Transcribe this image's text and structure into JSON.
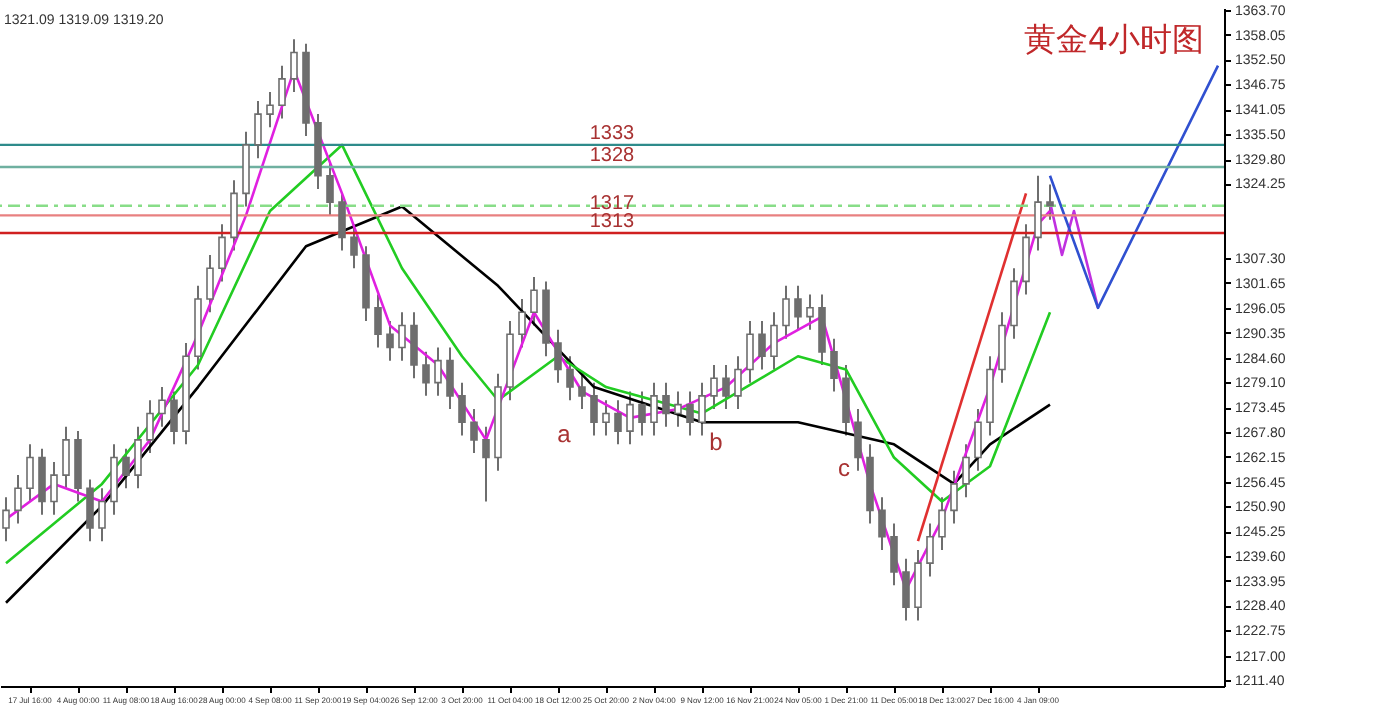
{
  "chart_data": {
    "type": "candlestick",
    "title": "黄金4小时图",
    "color": "#6e6e6e",
    "annotations": [
      "1321.09 1319.09 1319.20",
      "a",
      "b",
      "c"
    ],
    "categories": [
      null,
      null,
      "17 Jul 16:00",
      null,
      null,
      null,
      "4 Aug 00:00",
      null,
      null,
      null,
      "11 Aug 08:00",
      null,
      null,
      null,
      "18 Aug 16:00",
      null,
      null,
      null,
      "28 Aug 00:00",
      null,
      null,
      null,
      "4 Sep 08:00",
      null,
      null,
      null,
      "11 Sep 20:00",
      null,
      null,
      null,
      "19 Sep 04:00",
      null,
      null,
      null,
      "26 Sep 12:00",
      null,
      null,
      null,
      "3 Oct 20:00",
      null,
      null,
      null,
      "11 Oct 04:00",
      null,
      null,
      null,
      "18 Oct 12:00",
      null,
      null,
      null,
      "25 Oct 20:00",
      null,
      null,
      null,
      "2 Nov 04:00",
      null,
      null,
      null,
      "9 Nov 12:00",
      null,
      null,
      null,
      "16 Nov 21:00",
      null,
      null,
      null,
      "24 Nov 05:00",
      null,
      null,
      null,
      "1 Dec 21:00",
      null,
      null,
      null,
      "11 Dec 05:00",
      null,
      null,
      null,
      "18 Dec 13:00",
      null,
      null,
      null,
      "27 Dec 16:00",
      null,
      null,
      null,
      "4 Jan 09:00",
      null,
      null,
      null,
      null,
      null,
      null,
      null,
      null,
      null,
      null,
      null,
      null,
      null,
      null,
      null
    ],
    "ohlc": [
      [
        1246,
        1253,
        1243,
        1250
      ],
      [
        1250,
        1258,
        1247,
        1255
      ],
      [
        1255,
        1265,
        1252,
        1262
      ],
      [
        1262,
        1264,
        1249,
        1252
      ],
      [
        1252,
        1261,
        1249,
        1258
      ],
      [
        1258,
        1269,
        1255,
        1266
      ],
      [
        1266,
        1268,
        1252,
        1255
      ],
      [
        1255,
        1257,
        1243,
        1246
      ],
      [
        1246,
        1255,
        1243,
        1252
      ],
      [
        1252,
        1265,
        1249,
        1262
      ],
      [
        1262,
        1264,
        1255,
        1258
      ],
      [
        1258,
        1269,
        1255,
        1266
      ],
      [
        1266,
        1275,
        1263,
        1272
      ],
      [
        1272,
        1278,
        1269,
        1275
      ],
      [
        1275,
        1277,
        1265,
        1268
      ],
      [
        1268,
        1288,
        1265,
        1285
      ],
      [
        1285,
        1301,
        1282,
        1298
      ],
      [
        1298,
        1308,
        1295,
        1305
      ],
      [
        1305,
        1315,
        1302,
        1312
      ],
      [
        1312,
        1325,
        1309,
        1322
      ],
      [
        1322,
        1336,
        1319,
        1333
      ],
      [
        1333,
        1343,
        1330,
        1340
      ],
      [
        1340,
        1345,
        1337,
        1342
      ],
      [
        1342,
        1351,
        1339,
        1348
      ],
      [
        1348,
        1357,
        1345,
        1354
      ],
      [
        1354,
        1356,
        1335,
        1338
      ],
      [
        1338,
        1340,
        1323,
        1326
      ],
      [
        1326,
        1329,
        1317,
        1320
      ],
      [
        1320,
        1322,
        1309,
        1312
      ],
      [
        1312,
        1315,
        1305,
        1308
      ],
      [
        1308,
        1310,
        1293,
        1296
      ],
      [
        1296,
        1299,
        1287,
        1290
      ],
      [
        1290,
        1293,
        1284,
        1287
      ],
      [
        1287,
        1295,
        1284,
        1292
      ],
      [
        1292,
        1295,
        1280,
        1283
      ],
      [
        1283,
        1286,
        1276,
        1279
      ],
      [
        1279,
        1287,
        1276,
        1284
      ],
      [
        1284,
        1287,
        1273,
        1276
      ],
      [
        1276,
        1279,
        1267,
        1270
      ],
      [
        1270,
        1273,
        1263,
        1266
      ],
      [
        1266,
        1269,
        1252,
        1262
      ],
      [
        1262,
        1281,
        1259,
        1278
      ],
      [
        1278,
        1293,
        1275,
        1290
      ],
      [
        1290,
        1298,
        1287,
        1295
      ],
      [
        1295,
        1303,
        1292,
        1300
      ],
      [
        1300,
        1302,
        1285,
        1288
      ],
      [
        1288,
        1291,
        1279,
        1282
      ],
      [
        1282,
        1285,
        1275,
        1278
      ],
      [
        1278,
        1281,
        1273,
        1276
      ],
      [
        1276,
        1279,
        1267,
        1270
      ],
      [
        1270,
        1275,
        1267,
        1272
      ],
      [
        1272,
        1275,
        1265,
        1268
      ],
      [
        1268,
        1277,
        1265,
        1274
      ],
      [
        1274,
        1277,
        1267,
        1270
      ],
      [
        1270,
        1279,
        1267,
        1276
      ],
      [
        1276,
        1279,
        1269,
        1272
      ],
      [
        1272,
        1277,
        1269,
        1274
      ],
      [
        1274,
        1277,
        1267,
        1270
      ],
      [
        1270,
        1279,
        1267,
        1276
      ],
      [
        1276,
        1283,
        1273,
        1280
      ],
      [
        1280,
        1283,
        1273,
        1276
      ],
      [
        1276,
        1285,
        1273,
        1282
      ],
      [
        1282,
        1293,
        1279,
        1290
      ],
      [
        1290,
        1293,
        1282,
        1285
      ],
      [
        1285,
        1295,
        1282,
        1292
      ],
      [
        1292,
        1301,
        1289,
        1298
      ],
      [
        1298,
        1301,
        1291,
        1294
      ],
      [
        1294,
        1299,
        1291,
        1296
      ],
      [
        1296,
        1299,
        1283,
        1286
      ],
      [
        1286,
        1289,
        1277,
        1280
      ],
      [
        1280,
        1283,
        1267,
        1270
      ],
      [
        1270,
        1273,
        1259,
        1262
      ],
      [
        1262,
        1265,
        1247,
        1250
      ],
      [
        1250,
        1253,
        1241,
        1244
      ],
      [
        1244,
        1247,
        1233,
        1236
      ],
      [
        1236,
        1239,
        1225,
        1228
      ],
      [
        1228,
        1241,
        1225,
        1238
      ],
      [
        1238,
        1247,
        1235,
        1244
      ],
      [
        1244,
        1253,
        1241,
        1250
      ],
      [
        1250,
        1259,
        1247,
        1256
      ],
      [
        1256,
        1265,
        1253,
        1262
      ],
      [
        1262,
        1273,
        1259,
        1270
      ],
      [
        1270,
        1285,
        1267,
        1282
      ],
      [
        1282,
        1295,
        1279,
        1292
      ],
      [
        1292,
        1305,
        1289,
        1302
      ],
      [
        1302,
        1315,
        1299,
        1312
      ],
      [
        1312,
        1326,
        1309,
        1320
      ],
      [
        1320,
        1324,
        1316,
        1319.2
      ],
      null,
      null,
      null,
      null,
      null,
      null,
      null,
      null,
      null,
      null,
      null,
      null,
      null,
      null
    ],
    "series": [
      {
        "type": "line",
        "color": "#000000",
        "values": [
          1229,
          null,
          null,
          null,
          null,
          null,
          null,
          null,
          1251,
          null,
          null,
          null,
          null,
          null,
          null,
          null,
          1278,
          null,
          null,
          null,
          null,
          null,
          null,
          null,
          null,
          1310,
          null,
          null,
          null,
          null,
          null,
          null,
          null,
          1319,
          null,
          null,
          null,
          null,
          null,
          null,
          null,
          1301,
          null,
          null,
          null,
          null,
          null,
          null,
          null,
          1278,
          null,
          null,
          null,
          null,
          null,
          null,
          null,
          null,
          1270,
          null,
          null,
          null,
          null,
          null,
          null,
          null,
          1270,
          null,
          null,
          null,
          null,
          null,
          null,
          null,
          1265,
          null,
          null,
          null,
          null,
          1256,
          null,
          null,
          1265,
          null,
          null,
          null,
          null,
          1274,
          null,
          null,
          null,
          null,
          null,
          null,
          null,
          null,
          null,
          null,
          null,
          null,
          null,
          null
        ]
      },
      {
        "type": "line",
        "color": "#22cc22",
        "values": [
          1238,
          null,
          null,
          null,
          null,
          null,
          null,
          null,
          1256,
          null,
          null,
          null,
          null,
          null,
          null,
          null,
          1283,
          null,
          null,
          null,
          null,
          null,
          1318,
          null,
          null,
          null,
          null,
          null,
          1333,
          null,
          null,
          null,
          null,
          1305,
          null,
          null,
          null,
          null,
          1285,
          null,
          null,
          1275,
          null,
          null,
          null,
          null,
          1285,
          null,
          null,
          null,
          1278,
          null,
          null,
          null,
          null,
          null,
          null,
          null,
          1272,
          null,
          null,
          null,
          null,
          null,
          null,
          null,
          1285,
          null,
          null,
          null,
          1282,
          null,
          null,
          null,
          1262,
          null,
          null,
          null,
          1252,
          null,
          null,
          null,
          1260,
          null,
          null,
          null,
          null,
          1295,
          null,
          null,
          null,
          null,
          null,
          null,
          null,
          null,
          null,
          null,
          null,
          null,
          null,
          null
        ]
      },
      {
        "type": "line",
        "color": "#e020e0",
        "values": [
          1248,
          null,
          null,
          null,
          1256,
          null,
          null,
          null,
          1252,
          null,
          null,
          null,
          1266,
          null,
          null,
          null,
          1290,
          null,
          null,
          null,
          1317,
          null,
          null,
          null,
          1350,
          null,
          null,
          null,
          1322,
          null,
          null,
          null,
          1292,
          null,
          null,
          null,
          1283,
          null,
          null,
          null,
          1266,
          null,
          null,
          null,
          1295,
          null,
          null,
          null,
          1277,
          null,
          null,
          null,
          1271,
          null,
          null,
          null,
          1273,
          null,
          null,
          null,
          1278,
          null,
          null,
          null,
          1288,
          null,
          null,
          null,
          1294,
          null,
          null,
          null,
          1256,
          null,
          null,
          1232,
          null,
          null,
          1248,
          null,
          null,
          null,
          1278,
          null,
          null,
          null,
          1315,
          1318,
          null,
          null,
          null,
          null,
          null,
          null,
          null,
          null,
          null,
          null,
          null,
          null,
          null,
          null
        ]
      },
      {
        "type": "line",
        "color": "#e03030",
        "values": [
          null,
          null,
          null,
          null,
          null,
          null,
          null,
          null,
          null,
          null,
          null,
          null,
          null,
          null,
          null,
          null,
          null,
          null,
          null,
          null,
          null,
          null,
          null,
          null,
          null,
          null,
          null,
          null,
          null,
          null,
          null,
          null,
          null,
          null,
          null,
          null,
          null,
          null,
          null,
          null,
          null,
          null,
          null,
          null,
          null,
          null,
          null,
          null,
          null,
          null,
          null,
          null,
          null,
          null,
          null,
          null,
          null,
          null,
          null,
          null,
          null,
          null,
          null,
          null,
          null,
          null,
          null,
          null,
          null,
          null,
          null,
          null,
          null,
          null,
          null,
          null,
          1243,
          null,
          null,
          null,
          null,
          null,
          null,
          null,
          null,
          1322,
          null,
          null,
          null,
          null,
          null,
          null,
          null,
          null,
          null,
          null,
          null,
          null,
          null,
          null,
          null,
          null
        ]
      },
      {
        "type": "line",
        "color": "#c030e0",
        "values": [
          null,
          null,
          null,
          null,
          null,
          null,
          null,
          null,
          null,
          null,
          null,
          null,
          null,
          null,
          null,
          null,
          null,
          null,
          null,
          null,
          null,
          null,
          null,
          null,
          null,
          null,
          null,
          null,
          null,
          null,
          null,
          null,
          null,
          null,
          null,
          null,
          null,
          null,
          null,
          null,
          null,
          null,
          null,
          null,
          null,
          null,
          null,
          null,
          null,
          null,
          null,
          null,
          null,
          null,
          null,
          null,
          null,
          null,
          null,
          null,
          null,
          null,
          null,
          null,
          null,
          null,
          null,
          null,
          null,
          null,
          null,
          null,
          null,
          null,
          null,
          null,
          null,
          null,
          null,
          null,
          null,
          null,
          null,
          null,
          null,
          null,
          null,
          1320,
          1308,
          1318,
          null,
          1296,
          null,
          null,
          null,
          null,
          null,
          null,
          null,
          null,
          null,
          null
        ]
      },
      {
        "type": "line",
        "color": "#3050d0",
        "values": [
          null,
          null,
          null,
          null,
          null,
          null,
          null,
          null,
          null,
          null,
          null,
          null,
          null,
          null,
          null,
          null,
          null,
          null,
          null,
          null,
          null,
          null,
          null,
          null,
          null,
          null,
          null,
          null,
          null,
          null,
          null,
          null,
          null,
          null,
          null,
          null,
          null,
          null,
          null,
          null,
          null,
          null,
          null,
          null,
          null,
          null,
          null,
          null,
          null,
          null,
          null,
          null,
          null,
          null,
          null,
          null,
          null,
          null,
          null,
          null,
          null,
          null,
          null,
          null,
          null,
          null,
          null,
          null,
          null,
          null,
          null,
          null,
          null,
          null,
          null,
          null,
          null,
          null,
          null,
          null,
          null,
          null,
          null,
          null,
          null,
          null,
          null,
          1326,
          null,
          null,
          null,
          1296,
          null,
          null,
          null,
          null,
          null,
          null,
          null,
          null,
          null,
          1351
        ]
      }
    ],
    "ref_lines": [
      {
        "axis": "y",
        "value": 1333,
        "label": "1333",
        "color": "#2e8b8b"
      },
      {
        "axis": "y",
        "value": 1328,
        "label": "1328",
        "color": "#6fb0a0"
      },
      {
        "axis": "y",
        "value": 1319.2,
        "color": "#88dd88",
        "line_style": "dashed"
      },
      {
        "axis": "y",
        "value": 1317,
        "label": "1317",
        "color": "#e88080"
      },
      {
        "axis": "y",
        "value": 1313,
        "label": "1313",
        "color": "#d02020"
      }
    ],
    "ylim": [
      1210.1,
      1364.1
    ],
    "yticks": [
      {
        "value": 1363.7,
        "label": "1363.70"
      },
      {
        "value": 1358.05,
        "label": "1358.05"
      },
      {
        "value": 1352.5,
        "label": "1352.50"
      },
      {
        "value": 1346.75,
        "label": "1346.75"
      },
      {
        "value": 1341.05,
        "label": "1341.05"
      },
      {
        "value": 1335.5,
        "label": "1335.50"
      },
      {
        "value": 1329.8,
        "label": "1329.80"
      },
      {
        "value": 1324.25,
        "label": "1324.25"
      },
      {
        "value": 1307.3,
        "label": "1307.30"
      },
      {
        "value": 1301.65,
        "label": "1301.65"
      },
      {
        "value": 1296.05,
        "label": "1296.05"
      },
      {
        "value": 1290.35,
        "label": "1290.35"
      },
      {
        "value": 1284.6,
        "label": "1284.60"
      },
      {
        "value": 1279.1,
        "label": "1279.10"
      },
      {
        "value": 1273.45,
        "label": "1273.45"
      },
      {
        "value": 1267.8,
        "label": "1267.80"
      },
      {
        "value": 1262.15,
        "label": "1262.15"
      },
      {
        "value": 1256.45,
        "label": "1256.45"
      },
      {
        "value": 1250.9,
        "label": "1250.90"
      },
      {
        "value": 1245.25,
        "label": "1245.25"
      },
      {
        "value": 1239.6,
        "label": "1239.60"
      },
      {
        "value": 1233.95,
        "label": "1233.95"
      },
      {
        "value": 1228.4,
        "label": "1228.40"
      },
      {
        "value": 1222.75,
        "label": "1222.75"
      },
      {
        "value": 1217,
        "label": "1217.00"
      },
      {
        "value": 1211.4,
        "label": "1211.40"
      }
    ]
  }
}
